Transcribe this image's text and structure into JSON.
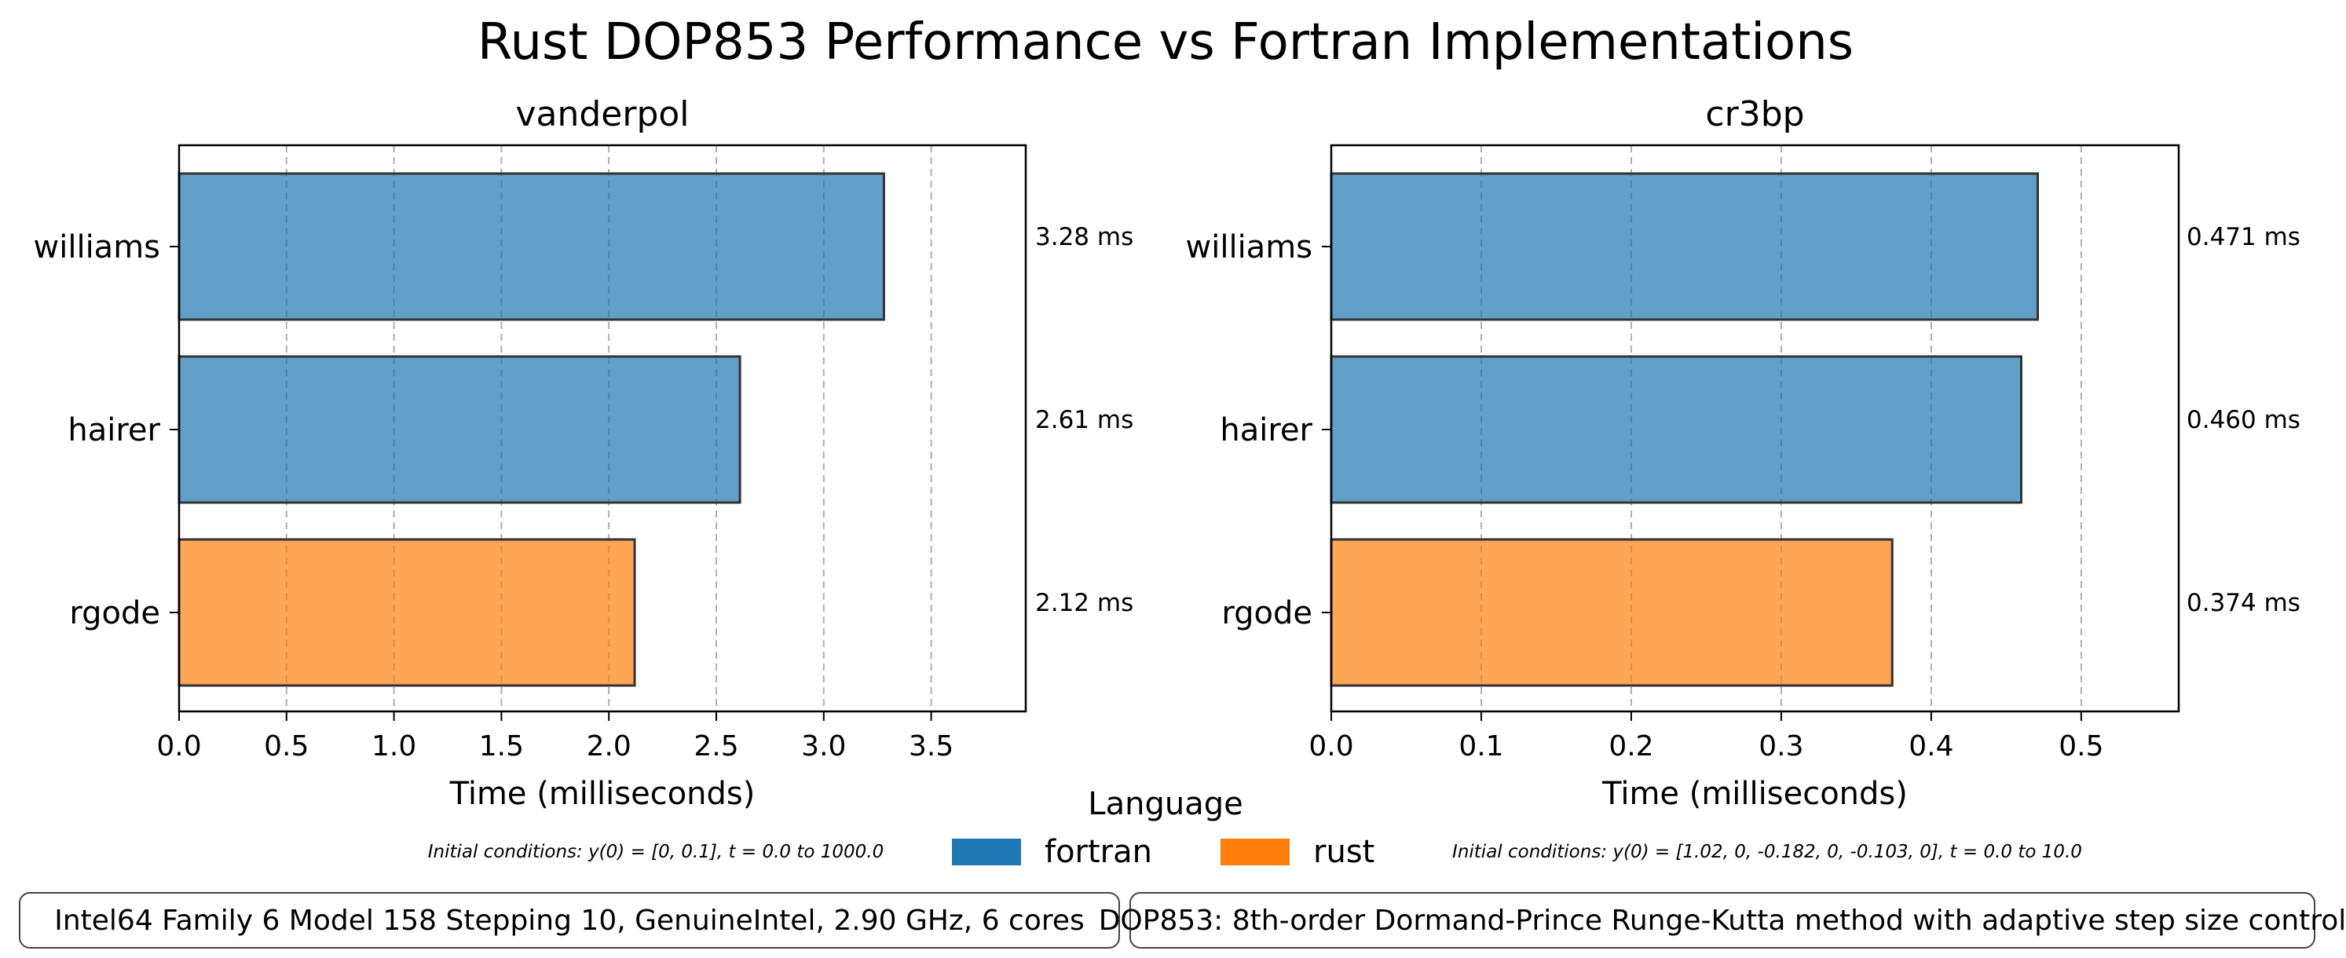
{
  "title": "Rust DOP853 Performance vs Fortran Implementations",
  "legend": {
    "title": "Language",
    "entries": [
      {
        "label": "fortran",
        "color": "#1f77b4"
      },
      {
        "label": "rust",
        "color": "#ff7f0e"
      }
    ]
  },
  "footer": {
    "system_info": "Intel64 Family 6 Model 158 Stepping 10, GenuineIntel, 2.90 GHz, 6 cores",
    "method_info": "DOP853: 8th-order Dormand-Prince Runge-Kutta method with adaptive step size control"
  },
  "colors": {
    "fortran": "#1f77b4",
    "rust": "#ff7f0e",
    "bar_edge": "#333333",
    "grid": "#b0b0b0"
  },
  "chart_data": [
    {
      "type": "bar",
      "orientation": "horizontal",
      "title": "vanderpol",
      "xlabel": "Time (milliseconds)",
      "categories": [
        "williams",
        "hairer",
        "rgode"
      ],
      "languages": [
        "fortran",
        "fortran",
        "rust"
      ],
      "values": [
        3.28,
        2.61,
        2.12
      ],
      "value_labels": [
        "3.28 ms",
        "2.61 ms",
        "2.12 ms"
      ],
      "xlim": [
        0,
        3.94
      ],
      "xticks": [
        0.0,
        0.5,
        1.0,
        1.5,
        2.0,
        2.5,
        3.0,
        3.5
      ],
      "xtick_labels": [
        "0.0",
        "0.5",
        "1.0",
        "1.5",
        "2.0",
        "2.5",
        "3.0",
        "3.5"
      ],
      "grid": "x, dashed",
      "annotation": "Initial conditions: y(0) = [0, 0.1], t = 0.0 to 1000.0"
    },
    {
      "type": "bar",
      "orientation": "horizontal",
      "title": "cr3bp",
      "xlabel": "Time (milliseconds)",
      "categories": [
        "williams",
        "hairer",
        "rgode"
      ],
      "languages": [
        "fortran",
        "fortran",
        "rust"
      ],
      "values": [
        0.471,
        0.46,
        0.374
      ],
      "value_labels": [
        "0.471 ms",
        "0.460 ms",
        "0.374 ms"
      ],
      "xlim": [
        0,
        0.565
      ],
      "xticks": [
        0.0,
        0.1,
        0.2,
        0.3,
        0.4,
        0.5
      ],
      "xtick_labels": [
        "0.0",
        "0.1",
        "0.2",
        "0.3",
        "0.4",
        "0.5"
      ],
      "grid": "x, dashed",
      "annotation": "Initial conditions: y(0) = [1.02, 0, -0.182, 0, -0.103, 0], t = 0.0 to 10.0"
    }
  ]
}
